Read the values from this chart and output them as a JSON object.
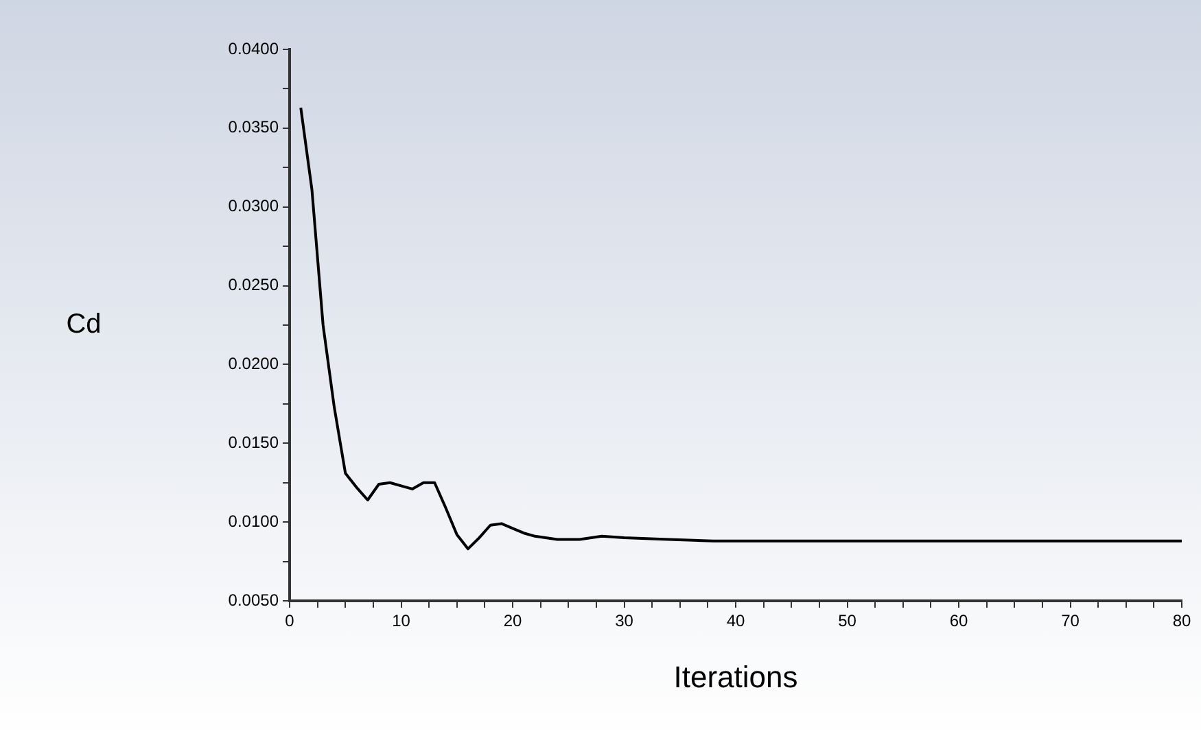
{
  "chart_data": {
    "type": "line",
    "xlabel": "Iterations",
    "ylabel": "Cd",
    "x": [
      1,
      2,
      3,
      4,
      5,
      6,
      7,
      8,
      9,
      10,
      11,
      12,
      13,
      14,
      15,
      16,
      17,
      18,
      19,
      20,
      21,
      22,
      24,
      26,
      28,
      30,
      34,
      38,
      50,
      60,
      70,
      80
    ],
    "series": [
      {
        "color": "#000000",
        "values": [
          0.0363,
          0.0311,
          0.0225,
          0.0173,
          0.0131,
          0.0122,
          0.0114,
          0.0124,
          0.0125,
          0.0123,
          0.0121,
          0.0125,
          0.0125,
          0.0109,
          0.0092,
          0.0083,
          0.009,
          0.0098,
          0.0099,
          0.0096,
          0.0093,
          0.0091,
          0.0089,
          0.0089,
          0.0091,
          0.009,
          0.0089,
          0.0088,
          0.0088,
          0.0088,
          0.0088,
          0.0088
        ]
      }
    ],
    "xlim": [
      0,
      80
    ],
    "xticks": [
      0,
      {
        "value": 2.5,
        "label": null
      },
      {
        "value": 5,
        "label": null
      },
      {
        "value": 7.5,
        "label": null
      },
      10,
      {
        "value": 12.5,
        "label": null
      },
      {
        "value": 15,
        "label": null
      },
      {
        "value": 17.5,
        "label": null
      },
      20,
      {
        "value": 22.5,
        "label": null
      },
      {
        "value": 25,
        "label": null
      },
      {
        "value": 27.5,
        "label": null
      },
      30,
      {
        "value": 32.5,
        "label": null
      },
      {
        "value": 35,
        "label": null
      },
      {
        "value": 37.5,
        "label": null
      },
      40,
      {
        "value": 42.5,
        "label": null
      },
      {
        "value": 45,
        "label": null
      },
      {
        "value": 47.5,
        "label": null
      },
      50,
      {
        "value": 52.5,
        "label": null
      },
      {
        "value": 55,
        "label": null
      },
      {
        "value": 57.5,
        "label": null
      },
      60,
      {
        "value": 62.5,
        "label": null
      },
      {
        "value": 65,
        "label": null
      },
      {
        "value": 67.5,
        "label": null
      },
      70,
      {
        "value": 72.5,
        "label": null
      },
      {
        "value": 75,
        "label": null
      },
      {
        "value": 77.5,
        "label": null
      },
      80
    ],
    "ylim": [
      0.005,
      0.04
    ],
    "yticks": [
      {
        "value": 0.005,
        "label": "0.0050"
      },
      {
        "value": 0.0075,
        "label": null
      },
      {
        "value": 0.01,
        "label": "0.0100"
      },
      {
        "value": 0.0125,
        "label": null
      },
      {
        "value": 0.015,
        "label": "0.0150"
      },
      {
        "value": 0.0175,
        "label": null
      },
      {
        "value": 0.02,
        "label": "0.0200"
      },
      {
        "value": 0.0225,
        "label": null
      },
      {
        "value": 0.025,
        "label": "0.0250"
      },
      {
        "value": 0.0275,
        "label": null
      },
      {
        "value": 0.03,
        "label": "0.0300"
      },
      {
        "value": 0.0325,
        "label": null
      },
      {
        "value": 0.035,
        "label": "0.0350"
      },
      {
        "value": 0.0375,
        "label": null
      },
      {
        "value": 0.04,
        "label": "0.0400"
      }
    ],
    "grid": false,
    "legend": false,
    "marker": "none",
    "line_style": "solid"
  }
}
